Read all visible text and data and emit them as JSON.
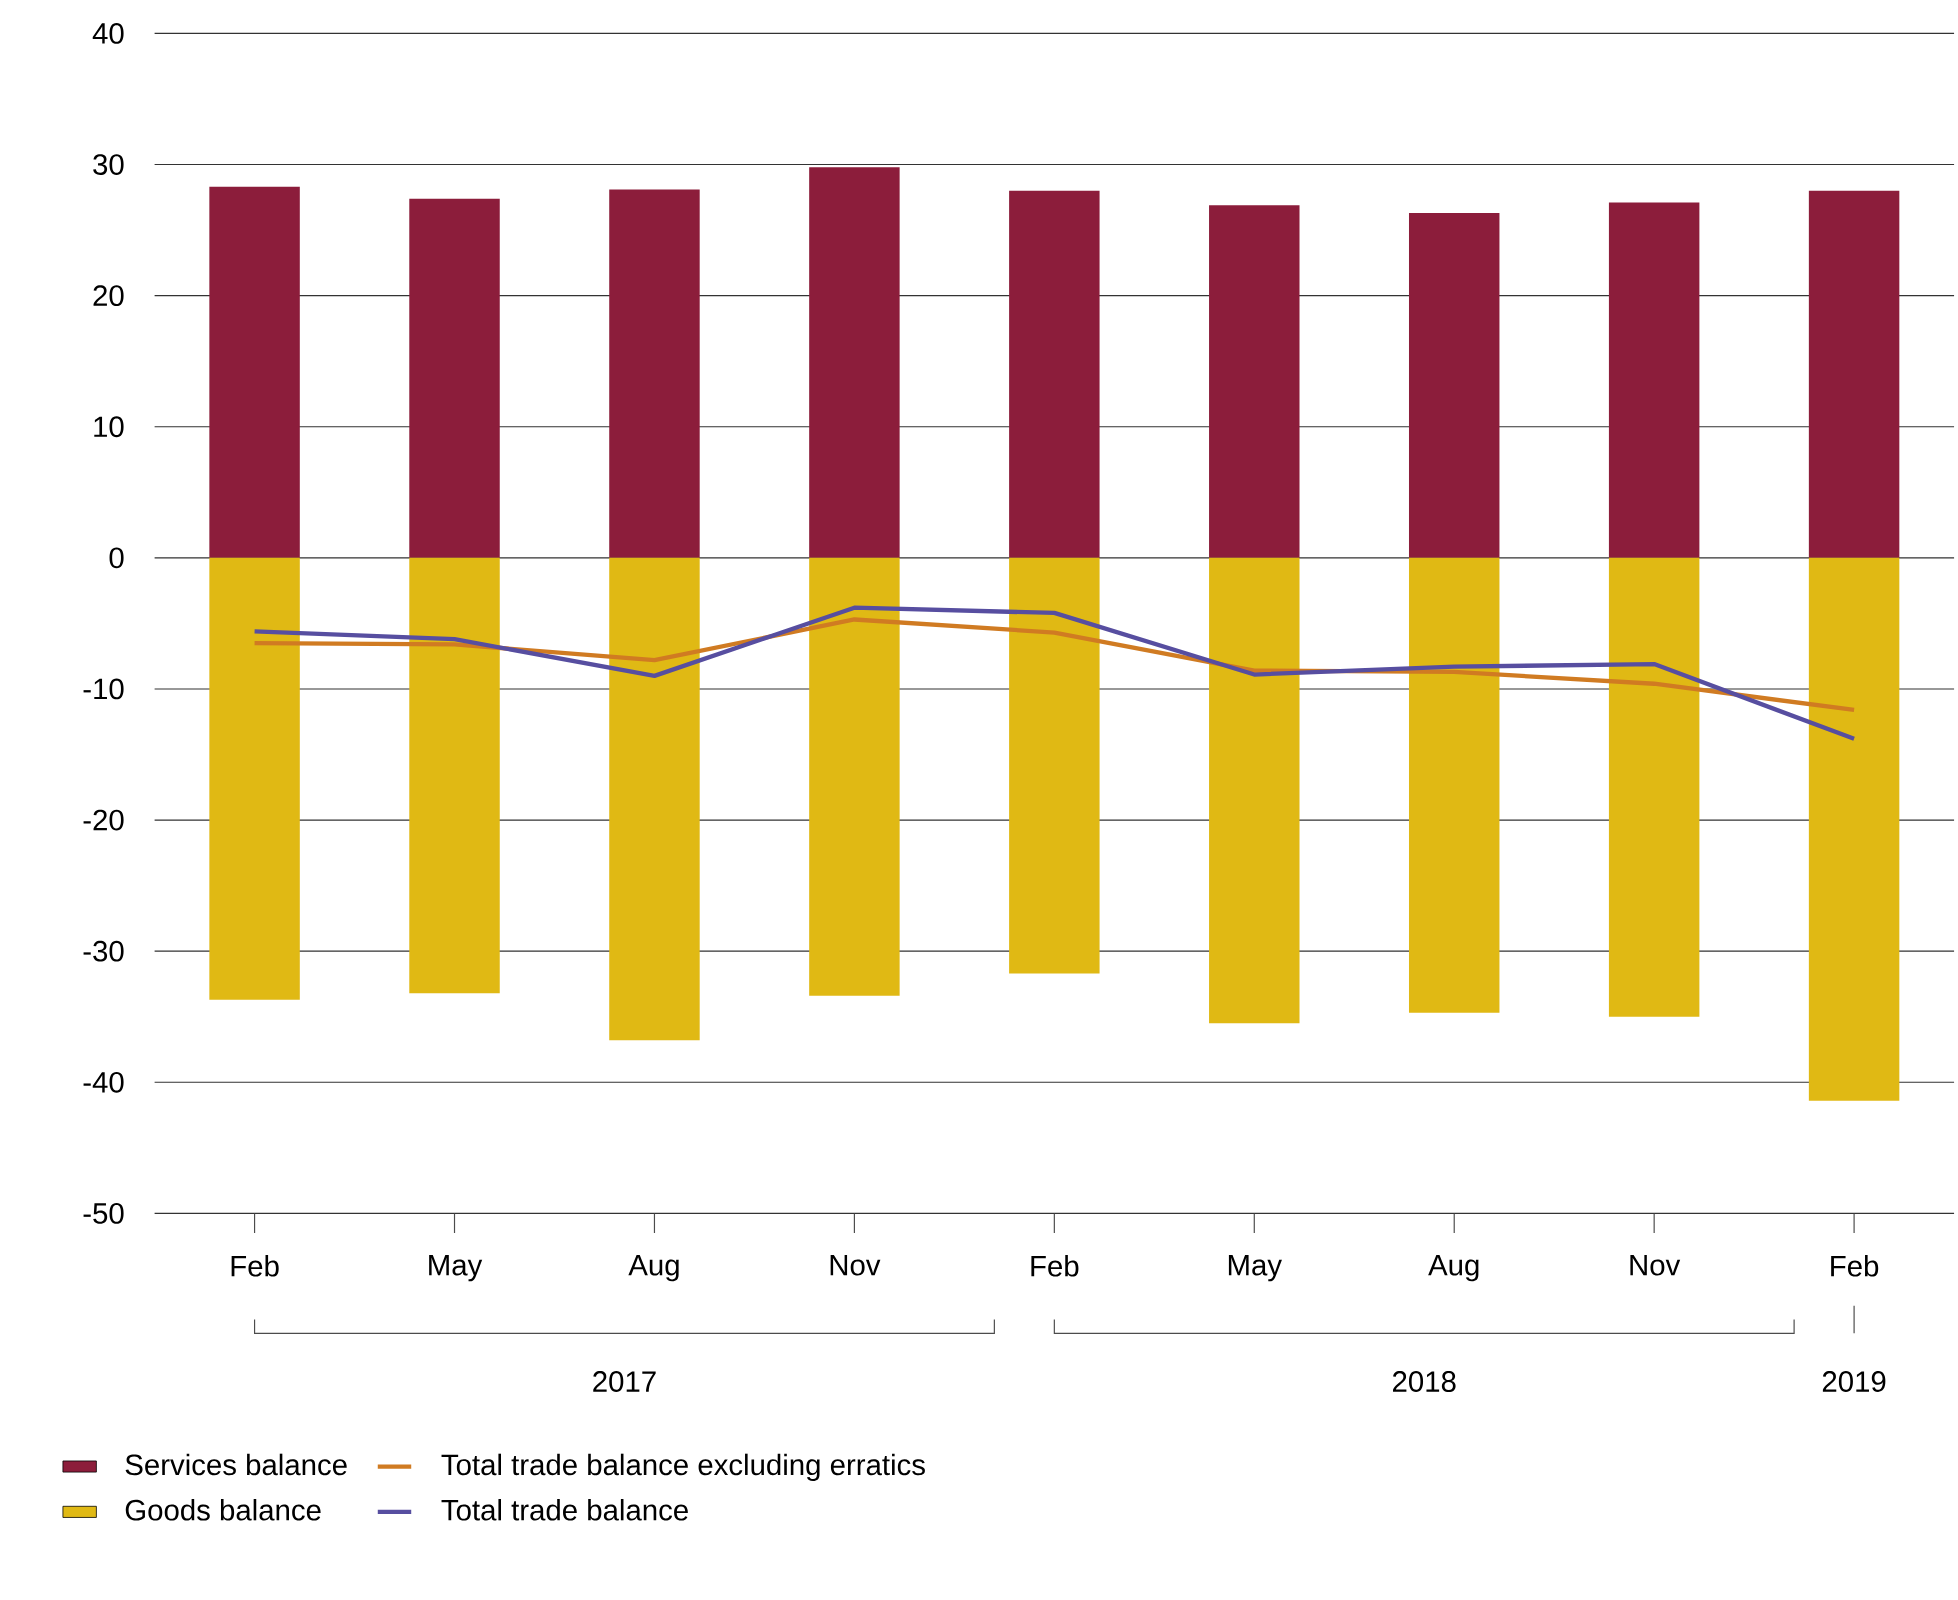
{
  "chart_data": {
    "type": "bar",
    "categories": [
      "Feb",
      "May",
      "Aug",
      "Nov",
      "Feb",
      "May",
      "Aug",
      "Nov",
      "Feb"
    ],
    "series": [
      {
        "name": "Services balance",
        "color": "#8c1d3b",
        "values": [
          28.3,
          27.4,
          28.1,
          29.8,
          28.0,
          26.9,
          26.3,
          27.1,
          28.0
        ]
      },
      {
        "name": "Goods balance",
        "color": "#e0b914",
        "values": [
          -33.7,
          -33.2,
          -36.8,
          -33.4,
          -31.7,
          -35.5,
          -34.7,
          -35.0,
          -41.4
        ]
      },
      {
        "name": "Total trade balance excluding erratics",
        "type": "line",
        "color": "#d07b22",
        "values": [
          -6.5,
          -6.6,
          -7.8,
          -4.7,
          -5.7,
          -8.6,
          -8.7,
          -9.6,
          -11.6
        ]
      },
      {
        "name": "Total trade balance",
        "type": "line",
        "color": "#574ea0",
        "values": [
          -5.6,
          -6.2,
          -9.0,
          -3.8,
          -4.2,
          -8.9,
          -8.3,
          -8.1,
          -13.8
        ]
      }
    ],
    "stacked": true,
    "ylim": [
      -50,
      40
    ],
    "yticks": [
      -50,
      -40,
      -30,
      -20,
      -10,
      0,
      10,
      20,
      30,
      40
    ],
    "grid": "y",
    "legend": "bottom",
    "line_style": "solid",
    "marker": "none",
    "annotations": [
      "2017",
      "2018",
      "2019"
    ]
  }
}
